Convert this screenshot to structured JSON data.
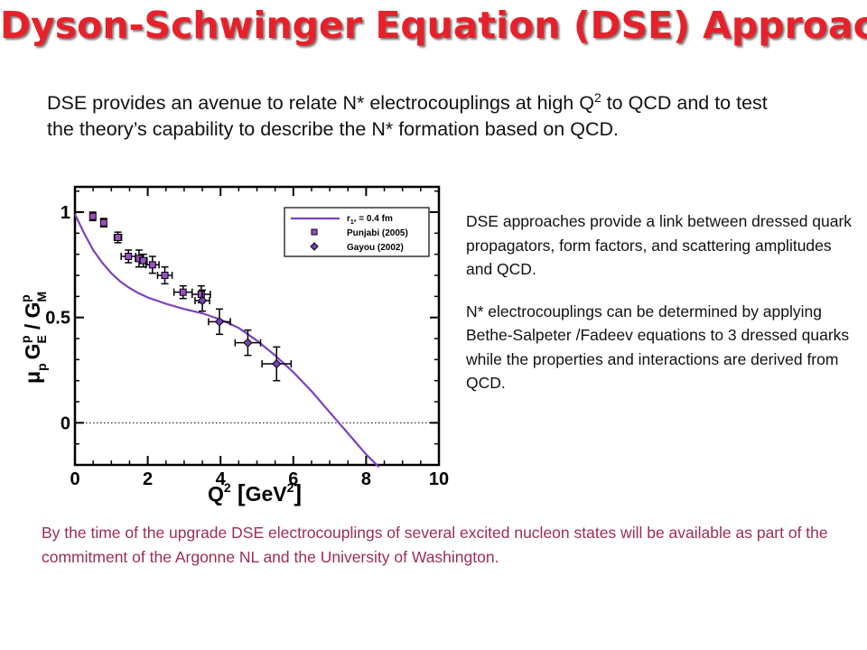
{
  "slide": {
    "title": "Dyson-Schwinger Equation (DSE) Approach",
    "intro_part1": "DSE provides an avenue to relate N* electrocouplings at high Q",
    "intro_sup": "2",
    "intro_part2": " to QCD and to test the theory’s capability to describe the N* formation based on QCD.",
    "right_p1": "DSE approaches provide a link between dressed quark propagators,  form factors, and scattering amplitudes and QCD.",
    "right_p2": "N* electrocouplings can be determined by applying Bethe-Salpeter /Fadeev equations to 3 dressed quarks while the properties and interactions are derived from QCD.",
    "bottom": "By the time of the upgrade DSE electrocouplings of several excited nucleon states will be available as part of the commitment of the Argonne NL and the University of Washington."
  },
  "chart_data": {
    "type": "scatter",
    "xlabel_q": "Q",
    "xlabel_sup": "2",
    "xlabel_unit": "GeV",
    "xlabel_unit_sup": "2",
    "ylabel_mu": "μ",
    "ylabel_p": "p",
    "ylabel_g": "G",
    "ylabel_e": "E",
    "ylabel_sup_p": "p",
    "ylabel_slash": " / ",
    "ylabel_m": "M",
    "xlim": [
      0,
      10
    ],
    "ylim": [
      -0.2,
      1.12
    ],
    "x_ticks": [
      0,
      2,
      4,
      6,
      8,
      10
    ],
    "x_tick_labels": [
      "0",
      "2",
      "4",
      "6",
      "8",
      "10"
    ],
    "y_ticks": [
      0,
      0.5,
      1
    ],
    "y_tick_labels": [
      "0",
      "0.5",
      "1"
    ],
    "zero_line": "dotted",
    "legend_placement": "top-right",
    "colors": {
      "curve": "#7b3fbf",
      "punjabi": "#9a4ec4",
      "gayou": "#7b3fbf",
      "axis": "#000000"
    },
    "series": [
      {
        "name": "r1* = 0.4 fm",
        "legend_label_r": "r",
        "legend_label_sub": "1*",
        "legend_label_rest": " = 0.4 fm",
        "kind": "line",
        "x": [
          0,
          0.25,
          0.5,
          0.75,
          1.0,
          1.25,
          1.5,
          1.75,
          2.0,
          2.5,
          3.0,
          3.5,
          4.0,
          4.5,
          5.0,
          5.5,
          6.0,
          6.5,
          7.0,
          7.5,
          8.0,
          8.35
        ],
        "y": [
          0.99,
          0.9,
          0.82,
          0.76,
          0.71,
          0.67,
          0.64,
          0.615,
          0.595,
          0.565,
          0.54,
          0.52,
          0.49,
          0.45,
          0.39,
          0.32,
          0.24,
          0.15,
          0.05,
          -0.05,
          -0.15,
          -0.21
        ]
      },
      {
        "name": "Punjabi (2005)",
        "kind": "points",
        "marker": "square",
        "x": [
          0.49,
          0.79,
          1.18,
          1.47,
          1.76,
          1.88,
          2.13,
          2.47,
          2.97,
          3.47
        ],
        "y": [
          0.98,
          0.95,
          0.88,
          0.79,
          0.78,
          0.77,
          0.75,
          0.7,
          0.62,
          0.61
        ],
        "xerr": [
          0.05,
          0.07,
          0.1,
          0.2,
          0.1,
          0.1,
          0.18,
          0.2,
          0.25,
          0.25
        ],
        "yerr": [
          0.02,
          0.02,
          0.025,
          0.03,
          0.04,
          0.03,
          0.04,
          0.04,
          0.03,
          0.04
        ]
      },
      {
        "name": "Gayou (2002)",
        "kind": "points",
        "marker": "diamond",
        "x": [
          3.5,
          3.97,
          4.75,
          5.54
        ],
        "y": [
          0.58,
          0.48,
          0.38,
          0.28
        ],
        "xerr": [
          0.2,
          0.3,
          0.35,
          0.4
        ],
        "yerr": [
          0.05,
          0.06,
          0.06,
          0.08
        ]
      }
    ]
  }
}
